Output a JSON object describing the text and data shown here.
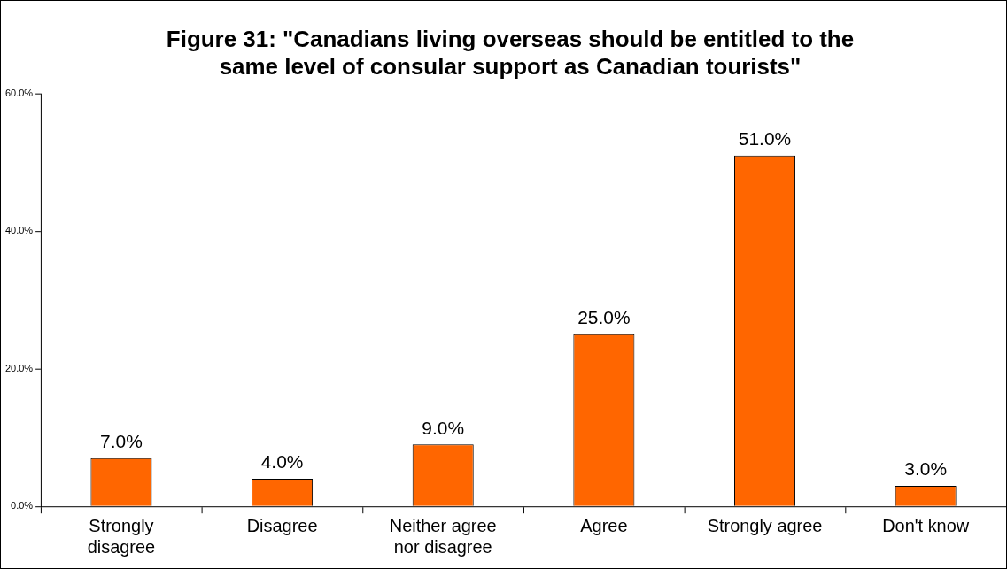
{
  "chart_data": {
    "type": "bar",
    "title": "Figure 31: \"Canadians living overseas should be entitled to the same level of consular support as Canadian tourists\"",
    "categories": [
      "Strongly disagree",
      "Disagree",
      "Neither agree nor disagree",
      "Agree",
      "Strongly agree",
      "Don't know"
    ],
    "values": [
      7,
      4,
      9,
      25,
      51,
      3
    ],
    "value_labels": [
      "7.0%",
      "4.0%",
      "9.0%",
      "25.0%",
      "51.0%",
      "3.0%"
    ],
    "color": "#ff6600",
    "ylim": [
      0,
      60
    ],
    "yticks": [
      {
        "value": 0,
        "label": "0.0%"
      },
      {
        "value": 20,
        "label": "20.0%"
      },
      {
        "value": 40,
        "label": "40.0%"
      },
      {
        "value": 60,
        "label": "60.0%"
      }
    ],
    "grid": false,
    "legend": false
  }
}
